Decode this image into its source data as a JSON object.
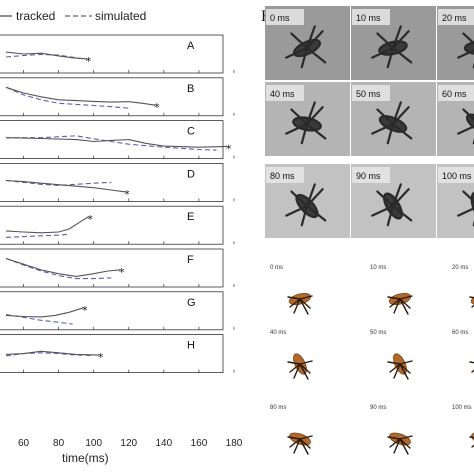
{
  "figure": {
    "legend": {
      "tracked": "tracked",
      "simulated": "simulated"
    },
    "panel_h_label": "H",
    "panel_i_label": "I",
    "video_frames": [
      {
        "label": "0 ms"
      },
      {
        "label": "10 ms"
      },
      {
        "label": "20 ms"
      },
      {
        "label": "40 ms"
      },
      {
        "label": "50 ms"
      },
      {
        "label": "60 ms"
      },
      {
        "label": "80 ms"
      },
      {
        "label": "90 ms"
      },
      {
        "label": "100 ms"
      }
    ],
    "render_frames": [
      {
        "label": "0 ms"
      },
      {
        "label": "10 ms"
      },
      {
        "label": "20 ms"
      },
      {
        "label": "40 ms"
      },
      {
        "label": "50 ms"
      },
      {
        "label": "60 ms"
      },
      {
        "label": "80 ms"
      },
      {
        "label": "90 ms"
      },
      {
        "label": "100 ms"
      }
    ]
  },
  "chart_data": {
    "type": "line",
    "xlabel": "time(ms)",
    "xlim": [
      50,
      180
    ],
    "x_ticks": [
      60,
      80,
      100,
      120,
      140,
      160,
      180
    ],
    "colors": {
      "tracked": "#555555",
      "simulated": "#5a5fb0"
    },
    "panels": [
      {
        "name": "A",
        "end_x": 96,
        "tracked": [
          [
            50,
            0.55
          ],
          [
            60,
            0.5
          ],
          [
            70,
            0.52
          ],
          [
            80,
            0.45
          ],
          [
            88,
            0.4
          ],
          [
            96,
            0.37
          ]
        ],
        "simulated": [
          [
            50,
            0.42
          ],
          [
            60,
            0.46
          ],
          [
            70,
            0.49
          ],
          [
            80,
            0.47
          ],
          [
            90,
            0.4
          ],
          [
            96,
            0.36
          ]
        ]
      },
      {
        "name": "B",
        "end_x": 135,
        "tracked": [
          [
            50,
            0.75
          ],
          [
            60,
            0.6
          ],
          [
            70,
            0.5
          ],
          [
            80,
            0.42
          ],
          [
            90,
            0.4
          ],
          [
            100,
            0.38
          ],
          [
            110,
            0.36
          ],
          [
            120,
            0.37
          ],
          [
            128,
            0.33
          ],
          [
            135,
            0.28
          ]
        ],
        "simulated": [
          [
            50,
            0.75
          ],
          [
            60,
            0.55
          ],
          [
            70,
            0.42
          ],
          [
            80,
            0.33
          ],
          [
            90,
            0.3
          ],
          [
            100,
            0.27
          ],
          [
            110,
            0.24
          ],
          [
            120,
            0.2
          ]
        ]
      },
      {
        "name": "C",
        "end_x": 176,
        "tracked": [
          [
            50,
            0.55
          ],
          [
            70,
            0.53
          ],
          [
            90,
            0.5
          ],
          [
            100,
            0.45
          ],
          [
            110,
            0.48
          ],
          [
            120,
            0.5
          ],
          [
            130,
            0.4
          ],
          [
            140,
            0.33
          ],
          [
            160,
            0.3
          ],
          [
            176,
            0.32
          ]
        ],
        "simulated": [
          [
            50,
            0.55
          ],
          [
            70,
            0.55
          ],
          [
            90,
            0.6
          ],
          [
            100,
            0.52
          ],
          [
            110,
            0.45
          ],
          [
            120,
            0.38
          ],
          [
            140,
            0.3
          ],
          [
            160,
            0.24
          ],
          [
            170,
            0.22
          ]
        ]
      },
      {
        "name": "D",
        "end_x": 118,
        "tracked": [
          [
            50,
            0.55
          ],
          [
            60,
            0.52
          ],
          [
            70,
            0.48
          ],
          [
            80,
            0.44
          ],
          [
            90,
            0.4
          ],
          [
            100,
            0.36
          ],
          [
            110,
            0.3
          ],
          [
            118,
            0.25
          ]
        ],
        "simulated": [
          [
            50,
            0.55
          ],
          [
            60,
            0.5
          ],
          [
            70,
            0.45
          ],
          [
            80,
            0.42
          ],
          [
            90,
            0.45
          ],
          [
            100,
            0.48
          ],
          [
            110,
            0.5
          ]
        ]
      },
      {
        "name": "E",
        "end_x": 97,
        "tracked": [
          [
            50,
            0.35
          ],
          [
            60,
            0.32
          ],
          [
            70,
            0.3
          ],
          [
            80,
            0.32
          ],
          [
            86,
            0.4
          ],
          [
            92,
            0.58
          ],
          [
            97,
            0.72
          ]
        ],
        "simulated": [
          [
            50,
            0.18
          ],
          [
            60,
            0.2
          ],
          [
            70,
            0.22
          ],
          [
            80,
            0.24
          ],
          [
            86,
            0.26
          ]
        ]
      },
      {
        "name": "F",
        "end_x": 115,
        "tracked": [
          [
            50,
            0.75
          ],
          [
            60,
            0.6
          ],
          [
            70,
            0.45
          ],
          [
            80,
            0.35
          ],
          [
            90,
            0.28
          ],
          [
            100,
            0.35
          ],
          [
            108,
            0.42
          ],
          [
            115,
            0.45
          ]
        ],
        "simulated": [
          [
            50,
            0.75
          ],
          [
            60,
            0.58
          ],
          [
            70,
            0.42
          ],
          [
            80,
            0.3
          ],
          [
            90,
            0.22
          ],
          [
            100,
            0.22
          ],
          [
            110,
            0.24
          ]
        ]
      },
      {
        "name": "G",
        "end_x": 94,
        "tracked": [
          [
            50,
            0.38
          ],
          [
            60,
            0.35
          ],
          [
            70,
            0.34
          ],
          [
            78,
            0.38
          ],
          [
            86,
            0.46
          ],
          [
            94,
            0.58
          ]
        ],
        "simulated": [
          [
            50,
            0.4
          ],
          [
            60,
            0.33
          ],
          [
            70,
            0.25
          ],
          [
            80,
            0.2
          ],
          [
            88,
            0.15
          ]
        ]
      },
      {
        "name": "H",
        "end_x": 103,
        "tracked": [
          [
            50,
            0.48
          ],
          [
            60,
            0.5
          ],
          [
            70,
            0.56
          ],
          [
            80,
            0.52
          ],
          [
            90,
            0.48
          ],
          [
            103,
            0.46
          ]
        ],
        "simulated": [
          [
            50,
            0.44
          ],
          [
            60,
            0.5
          ],
          [
            70,
            0.52
          ],
          [
            80,
            0.5
          ],
          [
            90,
            0.46
          ],
          [
            100,
            0.45
          ]
        ]
      }
    ]
  }
}
